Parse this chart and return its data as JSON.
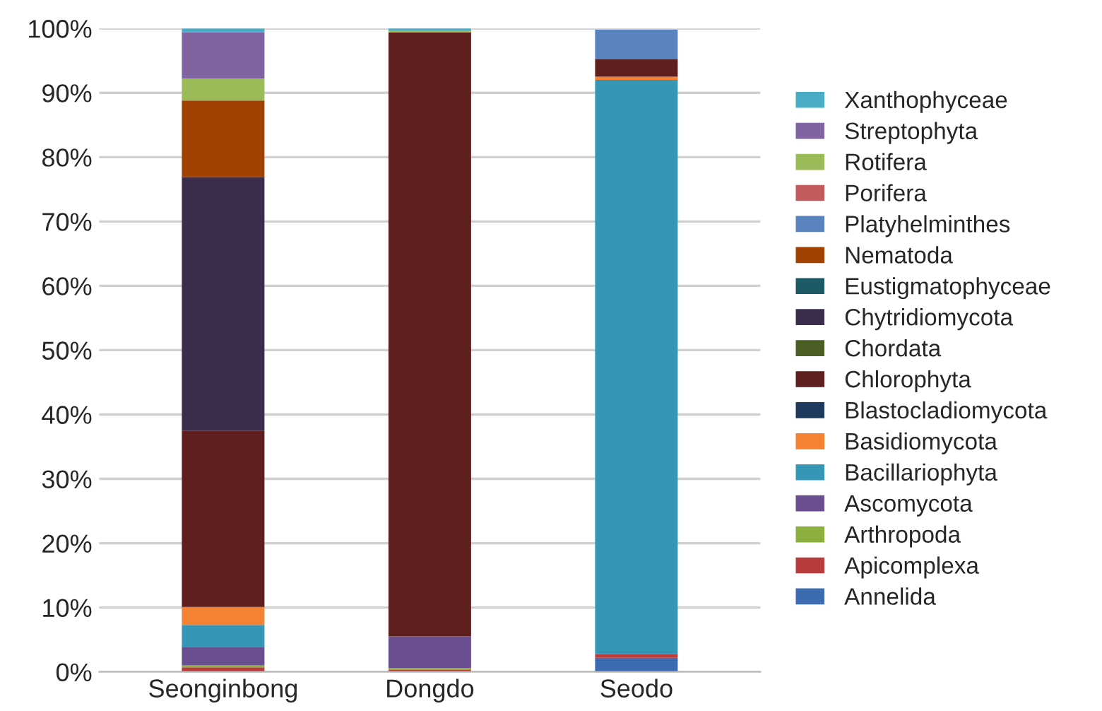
{
  "chart_data": {
    "type": "bar",
    "stacked": true,
    "categories": [
      "Seonginbong",
      "Dongdo",
      "Seodo"
    ],
    "ylim": [
      0,
      100
    ],
    "yticks": [
      {
        "value": 0,
        "label": "0%"
      },
      {
        "value": 10,
        "label": "10%"
      },
      {
        "value": 20,
        "label": "20%"
      },
      {
        "value": 30,
        "label": "30%"
      },
      {
        "value": 40,
        "label": "40%"
      },
      {
        "value": 50,
        "label": "50%"
      },
      {
        "value": 60,
        "label": "60%"
      },
      {
        "value": 70,
        "label": "70%"
      },
      {
        "value": 80,
        "label": "80%"
      },
      {
        "value": 90,
        "label": "90%"
      },
      {
        "value": 100,
        "label": "100%"
      }
    ],
    "grid": "y",
    "legend": "right",
    "series": [
      {
        "name": "Annelida",
        "color": "#3c6bb0",
        "values": [
          0,
          0,
          2.2
        ]
      },
      {
        "name": "Apicomplexa",
        "color": "#b83c3c",
        "values": [
          0.7,
          0.3,
          0.6
        ]
      },
      {
        "name": "Arthropoda",
        "color": "#8cb040",
        "values": [
          0.3,
          0.3,
          0
        ]
      },
      {
        "name": "Ascomycota",
        "color": "#6a4f90",
        "values": [
          2.8,
          4.9,
          0
        ]
      },
      {
        "name": "Bacillariophyta",
        "color": "#3696b6",
        "values": [
          3.5,
          0,
          89.2
        ]
      },
      {
        "name": "Basidiomycota",
        "color": "#f58233",
        "values": [
          2.8,
          0,
          0.5
        ]
      },
      {
        "name": "Blastocladiomycota",
        "color": "#1f3a5f",
        "values": [
          0,
          0,
          0
        ]
      },
      {
        "name": "Chlorophyta",
        "color": "#5f1f1f",
        "values": [
          27.4,
          93.9,
          2.7
        ]
      },
      {
        "name": "Chordata",
        "color": "#4b5e23",
        "values": [
          0,
          0,
          0
        ]
      },
      {
        "name": "Chytridiomycota",
        "color": "#3b2d4c",
        "values": [
          39.4,
          0,
          0
        ]
      },
      {
        "name": "Eustigmatophyceae",
        "color": "#1d5a66",
        "values": [
          0,
          0,
          0
        ]
      },
      {
        "name": "Nematoda",
        "color": "#a34102",
        "values": [
          11.9,
          0,
          0
        ]
      },
      {
        "name": "Platyhelminthes",
        "color": "#5a84bf",
        "values": [
          0,
          0,
          4.6
        ]
      },
      {
        "name": "Porifera",
        "color": "#c25c5c",
        "values": [
          0,
          0,
          0
        ]
      },
      {
        "name": "Rotifera",
        "color": "#9bbb59",
        "values": [
          3.4,
          0.3,
          0
        ]
      },
      {
        "name": "Streptophyta",
        "color": "#8064a2",
        "values": [
          7.2,
          0,
          0
        ]
      },
      {
        "name": "Xanthophyceae",
        "color": "#4bacc6",
        "values": [
          0.6,
          0.3,
          0
        ]
      }
    ]
  }
}
